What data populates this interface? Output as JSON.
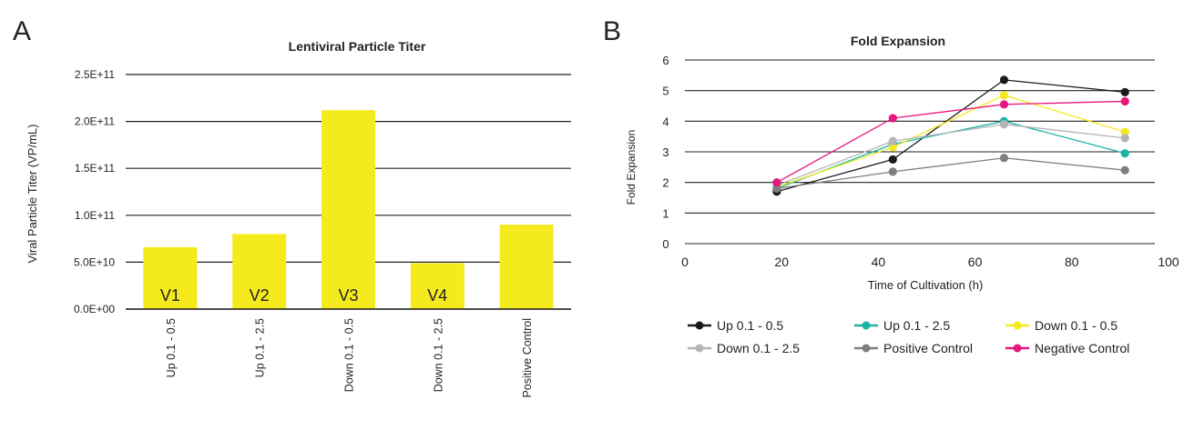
{
  "colors": {
    "bar": "#f5ea1e",
    "grid": "#222222",
    "axis_text": "#222222"
  },
  "chart_data": [
    {
      "panel_label": "A",
      "type": "bar",
      "title": "Lentiviral Particle Titer",
      "xlabel": "",
      "ylabel": "Viral Particle Titer (VP/mL)",
      "ylim": [
        0,
        250000000000
      ],
      "yticks": [
        0,
        50000000000,
        100000000000,
        150000000000,
        200000000000,
        250000000000
      ],
      "ytick_labels": [
        "0.0E+00",
        "5.0E+10",
        "1.0E+11",
        "1.5E+11",
        "2.0E+11",
        "2.5E+11"
      ],
      "grid": true,
      "categories": [
        "Up 0.1 - 0.5",
        "Up 0.1 - 2.5",
        "Down 0.1 - 0.5",
        "Down 0.1 - 2.5",
        "Positive Control"
      ],
      "values": [
        66000000000,
        80000000000,
        212000000000,
        49000000000,
        90000000000
      ],
      "bar_labels": [
        "V1",
        "V2",
        "V3",
        "V4",
        ""
      ]
    },
    {
      "panel_label": "B",
      "type": "line",
      "title": "Fold Expansion",
      "xlabel": "Time of Cultivation (h)",
      "ylabel": "Fold Expansion",
      "xlim": [
        0,
        100
      ],
      "ylim": [
        0,
        6
      ],
      "xticks": [
        0,
        20,
        40,
        60,
        80,
        100
      ],
      "yticks": [
        0,
        1,
        2,
        3,
        4,
        5,
        6
      ],
      "grid": true,
      "legend": "bottom",
      "x": [
        19,
        43,
        66,
        91
      ],
      "series": [
        {
          "name": "Up 0.1 - 0.5",
          "color": "#1a1a1a",
          "values": [
            1.7,
            2.75,
            5.35,
            4.95
          ]
        },
        {
          "name": "Up 0.1 - 2.5",
          "color": "#1ab3a6",
          "values": [
            1.8,
            3.25,
            4.0,
            2.95
          ]
        },
        {
          "name": "Down 0.1 - 0.5",
          "color": "#f5ea1e",
          "values": [
            1.85,
            3.15,
            4.85,
            3.65
          ]
        },
        {
          "name": "Down 0.1 - 2.5",
          "color": "#b5b5b5",
          "values": [
            1.9,
            3.35,
            3.9,
            3.45
          ]
        },
        {
          "name": "Positive Control",
          "color": "#7f7f7f",
          "values": [
            1.8,
            2.35,
            2.8,
            2.4
          ]
        },
        {
          "name": "Negative Control",
          "color": "#e6177e",
          "values": [
            2.0,
            4.1,
            4.55,
            4.65
          ]
        }
      ]
    }
  ]
}
